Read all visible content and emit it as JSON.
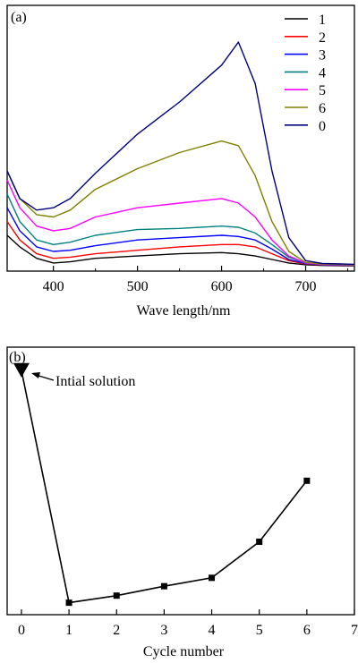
{
  "chart_data": [
    {
      "panel": "(a)",
      "type": "line",
      "xlabel": "Wave length/nm",
      "ylabel": "",
      "xlim": [
        345,
        758
      ],
      "ylim": [
        0,
        1
      ],
      "xticks": [
        400,
        500,
        600,
        700
      ],
      "grid": false,
      "legend": "top-right",
      "series": [
        {
          "name": "1",
          "color": "#000000",
          "x": [
            345,
            360,
            380,
            400,
            420,
            450,
            500,
            550,
            600,
            620,
            640,
            660,
            680,
            700,
            720,
            758
          ],
          "y": [
            0.14,
            0.09,
            0.04,
            0.02,
            0.025,
            0.04,
            0.05,
            0.06,
            0.065,
            0.06,
            0.05,
            0.035,
            0.02,
            0.012,
            0.009,
            0.007
          ]
        },
        {
          "name": "2",
          "color": "#ff0000",
          "x": [
            345,
            360,
            380,
            400,
            420,
            450,
            500,
            550,
            600,
            620,
            640,
            660,
            680,
            700,
            720,
            758
          ],
          "y": [
            0.2,
            0.12,
            0.06,
            0.04,
            0.045,
            0.06,
            0.075,
            0.09,
            0.1,
            0.1,
            0.09,
            0.06,
            0.03,
            0.015,
            0.011,
            0.008
          ]
        },
        {
          "name": "3",
          "color": "#0000ff",
          "x": [
            345,
            360,
            380,
            400,
            420,
            450,
            500,
            550,
            600,
            620,
            640,
            660,
            680,
            700,
            720,
            758
          ],
          "y": [
            0.26,
            0.16,
            0.09,
            0.07,
            0.075,
            0.095,
            0.12,
            0.13,
            0.14,
            0.135,
            0.12,
            0.08,
            0.035,
            0.017,
            0.012,
            0.009
          ]
        },
        {
          "name": "4",
          "color": "#008080",
          "x": [
            345,
            360,
            380,
            400,
            420,
            450,
            500,
            550,
            600,
            620,
            640,
            660,
            680,
            700,
            720,
            758
          ],
          "y": [
            0.32,
            0.2,
            0.12,
            0.1,
            0.11,
            0.14,
            0.165,
            0.17,
            0.18,
            0.175,
            0.15,
            0.1,
            0.045,
            0.019,
            0.013,
            0.01
          ]
        },
        {
          "name": "5",
          "color": "#ff00ff",
          "x": [
            345,
            360,
            380,
            400,
            420,
            450,
            500,
            550,
            600,
            620,
            640,
            660,
            680,
            700,
            720,
            758
          ],
          "y": [
            0.38,
            0.26,
            0.18,
            0.16,
            0.17,
            0.22,
            0.26,
            0.28,
            0.3,
            0.28,
            0.22,
            0.12,
            0.05,
            0.02,
            0.014,
            0.011
          ]
        },
        {
          "name": "6",
          "color": "#808000",
          "x": [
            345,
            360,
            380,
            400,
            420,
            450,
            500,
            550,
            600,
            620,
            640,
            660,
            680,
            700,
            720,
            758
          ],
          "y": [
            0.42,
            0.3,
            0.23,
            0.22,
            0.25,
            0.34,
            0.43,
            0.5,
            0.55,
            0.53,
            0.4,
            0.2,
            0.07,
            0.022,
            0.015,
            0.012
          ]
        },
        {
          "name": "0",
          "color": "#000080",
          "x": [
            345,
            360,
            380,
            400,
            420,
            450,
            500,
            550,
            600,
            620,
            640,
            660,
            680,
            700,
            720,
            758
          ],
          "y": [
            0.42,
            0.3,
            0.25,
            0.26,
            0.3,
            0.41,
            0.58,
            0.72,
            0.88,
            0.98,
            0.8,
            0.42,
            0.13,
            0.03,
            0.018,
            0.014
          ]
        }
      ]
    },
    {
      "panel": "(b)",
      "type": "line",
      "xlabel": "Cycle number",
      "ylabel": "",
      "xlim": [
        -0.3,
        7
      ],
      "ylim": [
        0,
        1
      ],
      "xticks": [
        0,
        1,
        2,
        3,
        4,
        5,
        6,
        7
      ],
      "grid": false,
      "x": [
        0,
        1,
        2,
        3,
        4,
        5,
        6
      ],
      "y": [
        0.955,
        0.04,
        0.068,
        0.105,
        0.138,
        0.28,
        0.52
      ],
      "annotation": "Intial solution"
    }
  ]
}
